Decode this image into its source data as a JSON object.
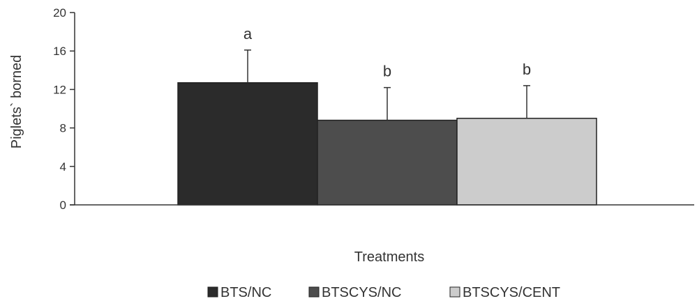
{
  "chart_data": {
    "type": "bar",
    "title": "",
    "xlabel": "Treatments",
    "ylabel": "Piglets` borned",
    "ylim": [
      0,
      20
    ],
    "yticks": [
      0,
      4,
      8,
      12,
      16,
      20
    ],
    "grid": false,
    "legend_position": "bottom",
    "series": [
      {
        "name": "BTS/NC",
        "value": 12.7,
        "error": 3.4,
        "label": "a",
        "color": "#2b2b2b"
      },
      {
        "name": "BTSCYS/NC",
        "value": 8.8,
        "error": 3.4,
        "label": "b",
        "color": "#4d4d4d"
      },
      {
        "name": "BTSCYS/CENT",
        "value": 9.0,
        "error": 3.4,
        "label": "b",
        "color": "#cccccc"
      }
    ]
  }
}
